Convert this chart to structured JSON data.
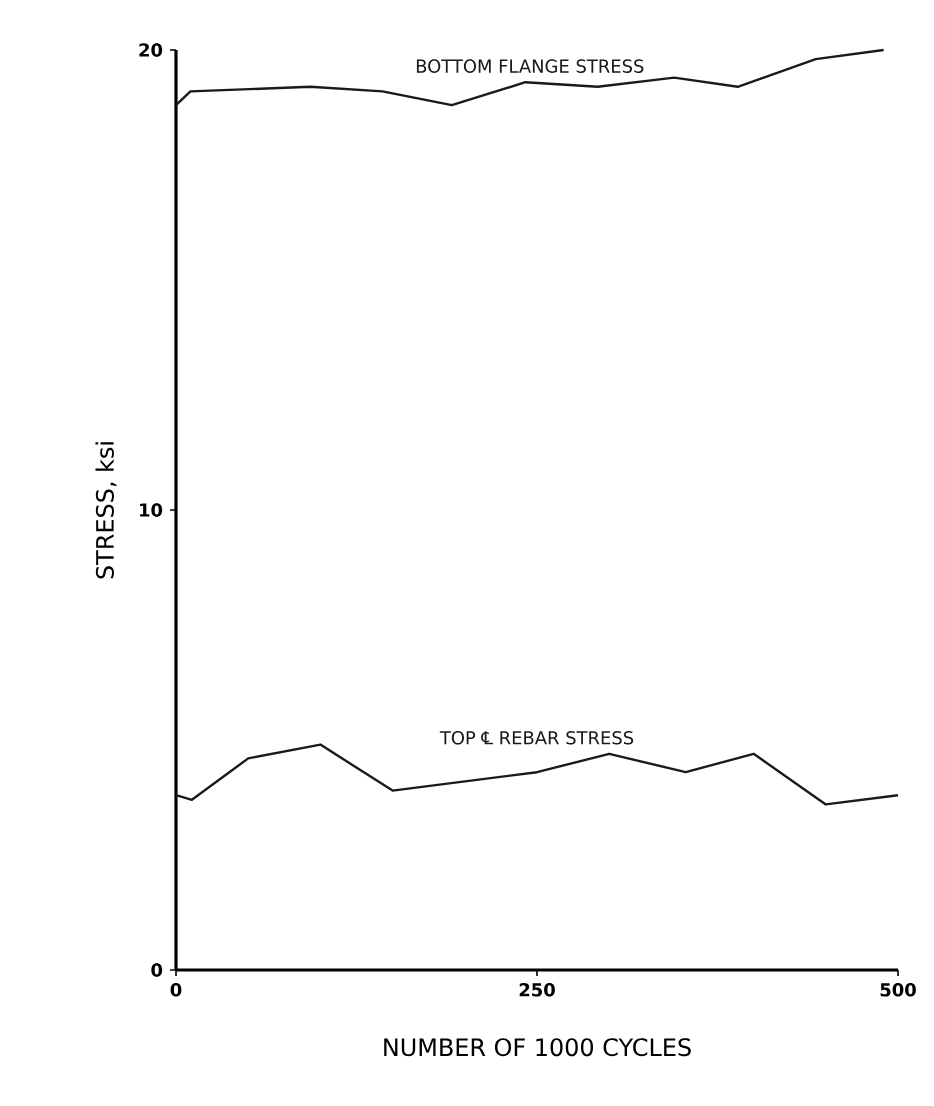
{
  "chart_data": {
    "type": "line",
    "xlabel": "NUMBER OF 1000 CYCLES",
    "ylabel": "STRESS, ksi",
    "xlim": [
      0,
      500
    ],
    "ylim": [
      0,
      20
    ],
    "xticks": [
      0,
      250,
      500
    ],
    "yticks": [
      0,
      10,
      20
    ],
    "marker": "none",
    "line_style": "solid",
    "grid": false,
    "legend": false,
    "series": [
      {
        "name": "BOTTOM FLANGE STRESS",
        "color": "#1a1a1a",
        "x": [
          0,
          10,
          93,
          143,
          191,
          242,
          292,
          345,
          389,
          443,
          490
        ],
        "values": [
          18.8,
          19.1,
          19.2,
          19.1,
          18.8,
          19.3,
          19.2,
          19.4,
          19.2,
          19.8,
          20.0
        ]
      },
      {
        "name": "TOP ℄ REBAR STRESS",
        "color": "#1a1a1a",
        "x": [
          0,
          11,
          50,
          100,
          150,
          250,
          300,
          353,
          400,
          450,
          500
        ],
        "values": [
          3.8,
          3.7,
          4.6,
          4.9,
          3.9,
          4.3,
          4.7,
          4.3,
          4.7,
          3.6,
          3.8
        ]
      }
    ]
  }
}
